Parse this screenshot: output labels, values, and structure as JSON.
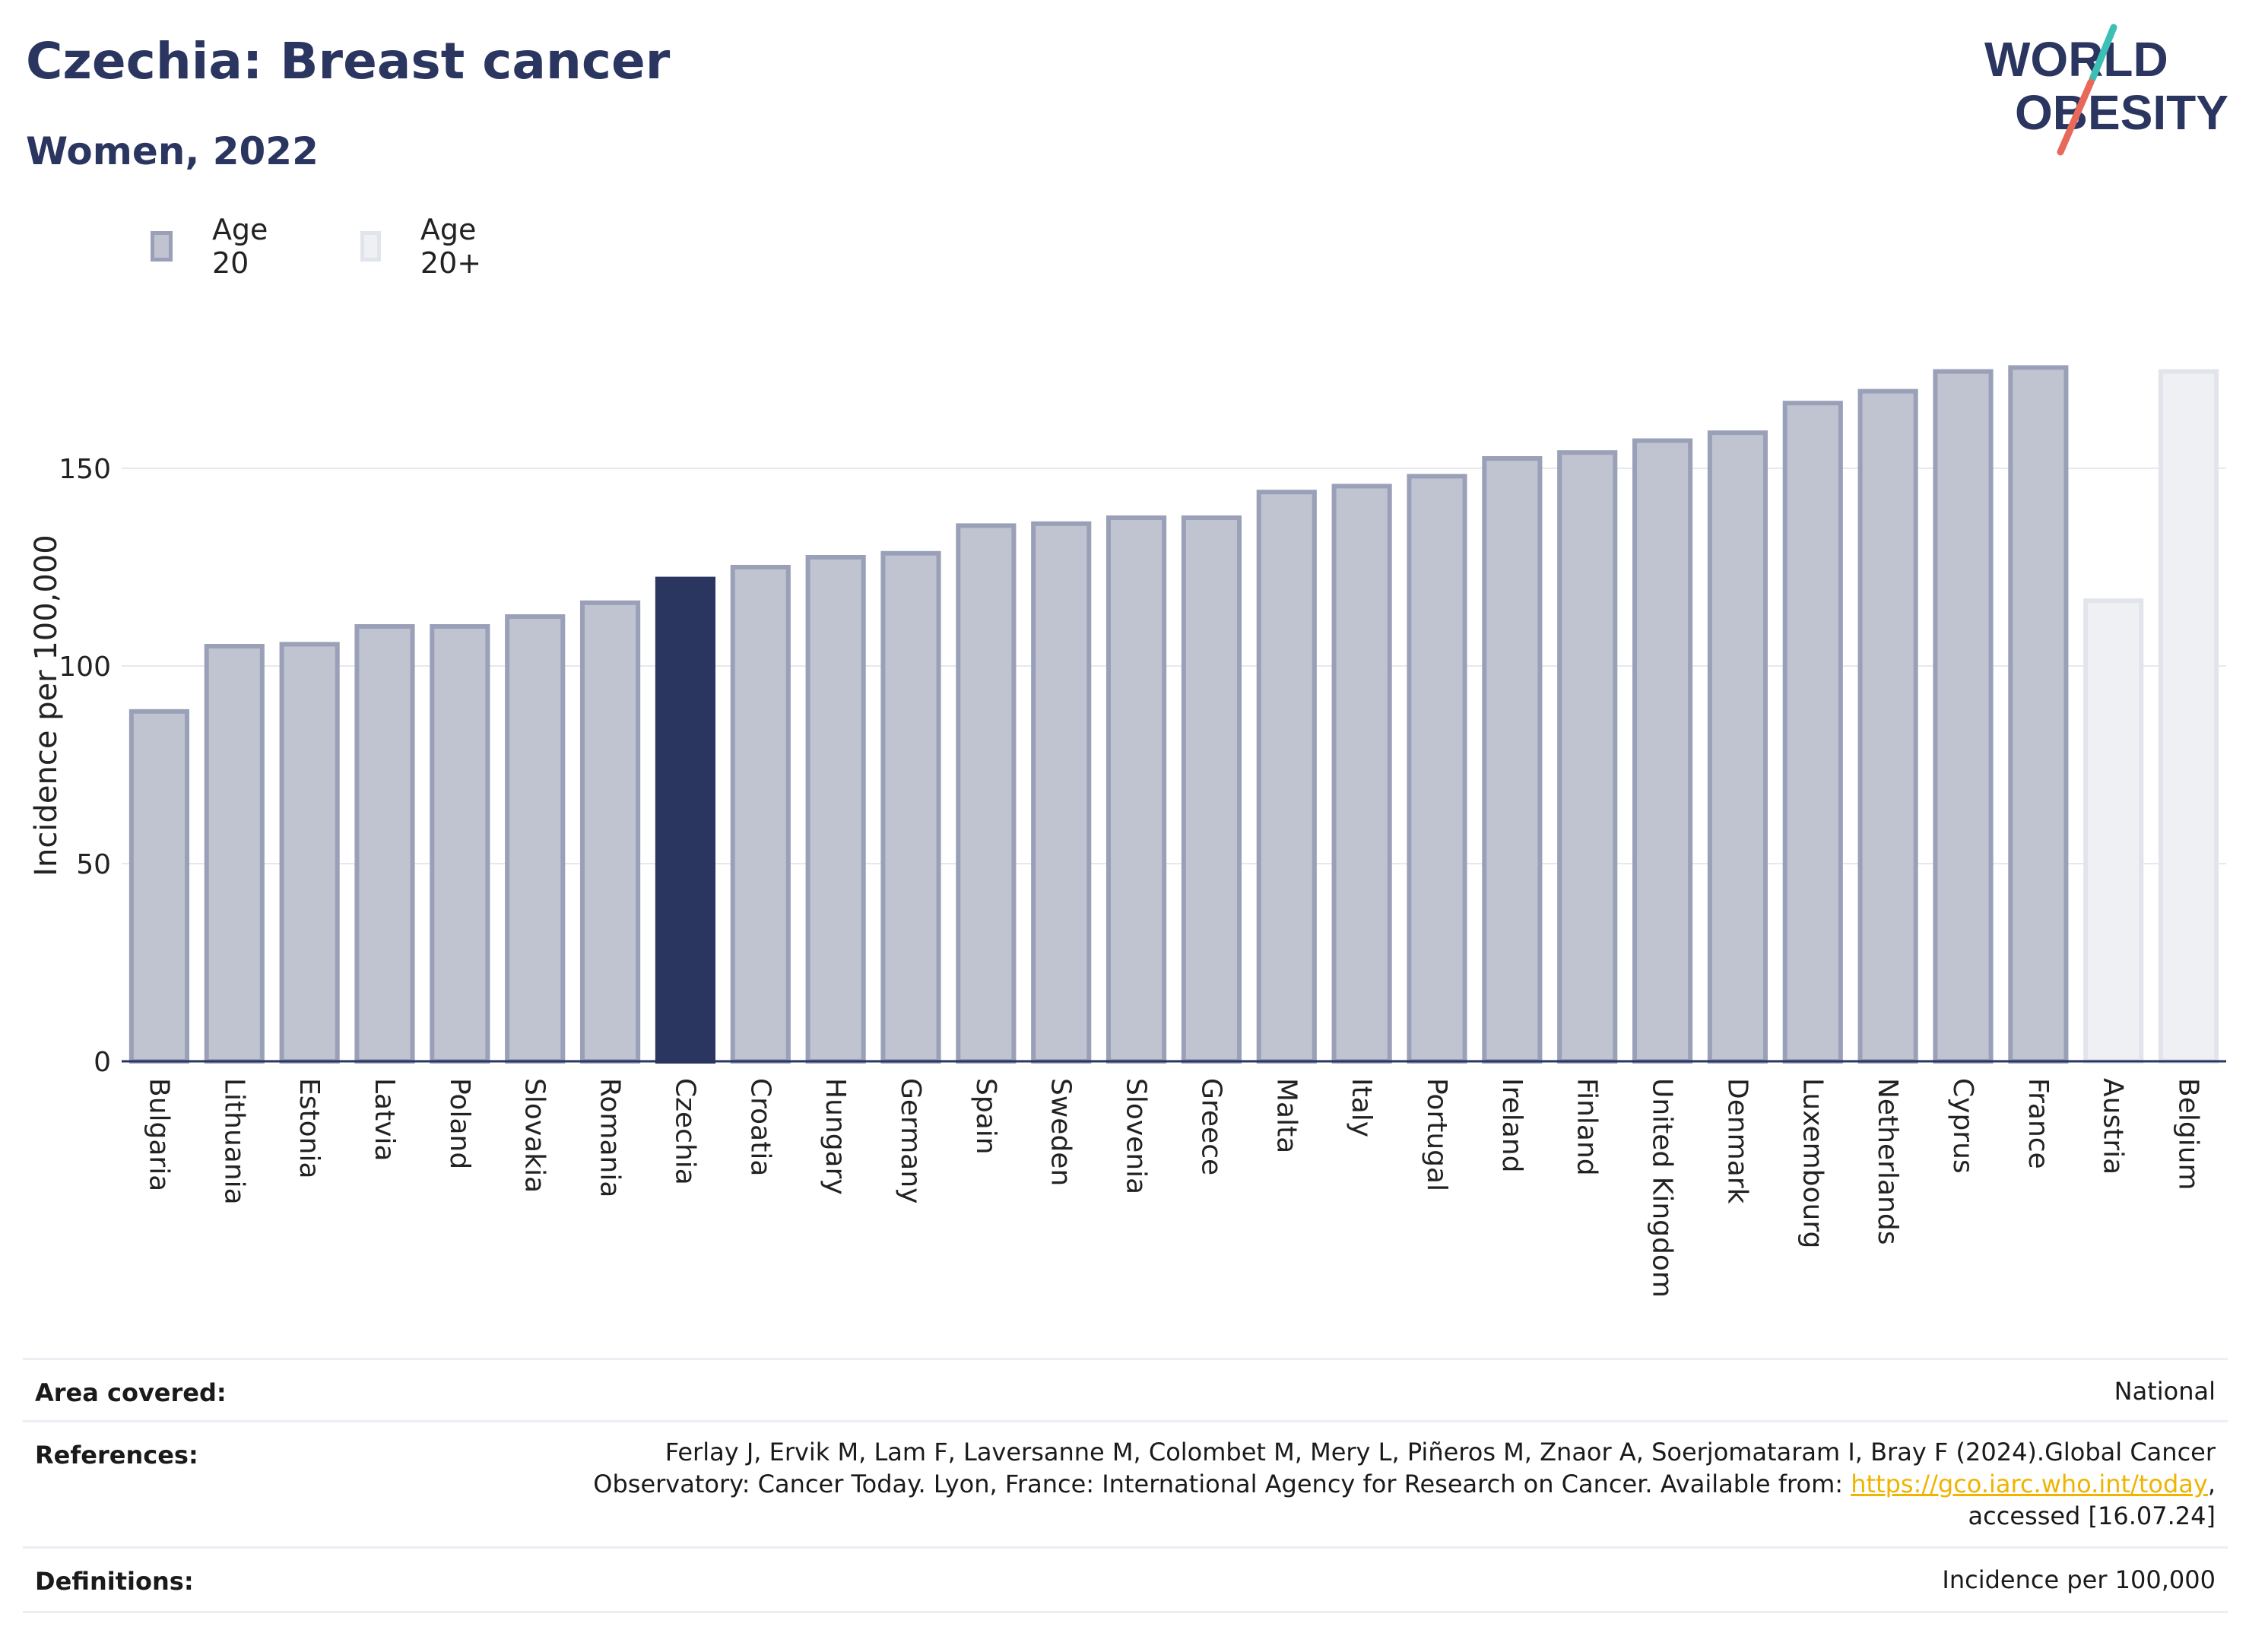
{
  "header": {
    "title": "Czechia: Breast cancer",
    "subtitle": "Women, 2022"
  },
  "logo": {
    "line1": "WORLD",
    "line2": "OBESITY",
    "slash_colors": [
      "#e8685a",
      "#3cc0b6"
    ]
  },
  "legend": [
    {
      "label": "Age 20",
      "fill": "#c0c3d0",
      "stroke": "#9aa0b8"
    },
    {
      "label": "Age 20+",
      "fill": "#eff0f4",
      "stroke": "#e2e4ec"
    }
  ],
  "chart_data": {
    "type": "bar",
    "title": "",
    "xlabel": "",
    "ylabel": "Incidence per 100,000",
    "ylim": [
      0,
      180
    ],
    "yticks": [
      0,
      50,
      100,
      150
    ],
    "grid": true,
    "legend_position": "top-left",
    "highlight": "Czechia",
    "colors": {
      "age20_fill": "#c0c3d0",
      "age20_stroke": "#9aa0b8",
      "age20plus_fill": "#eff0f4",
      "age20plus_stroke": "#e2e4ec",
      "highlight": "#2b3660"
    },
    "categories": [
      "Bulgaria",
      "Lithuania",
      "Estonia",
      "Latvia",
      "Poland",
      "Slovakia",
      "Romania",
      "Czechia",
      "Croatia",
      "Hungary",
      "Germany",
      "Spain",
      "Sweden",
      "Slovenia",
      "Greece",
      "Malta",
      "Italy",
      "Portugal",
      "Ireland",
      "Finland",
      "United Kingdom",
      "Denmark",
      "Luxembourg",
      "Netherlands",
      "Cyprus",
      "France",
      "Austria",
      "Belgium"
    ],
    "series": [
      {
        "name": "Age 20",
        "values": [
          88.5,
          105,
          105.5,
          110,
          110,
          112.5,
          116,
          122,
          125,
          127.5,
          128.5,
          135.5,
          136,
          137.5,
          137.5,
          144,
          145.5,
          148,
          152.5,
          154,
          157,
          159,
          166.5,
          169.5,
          174.5,
          175.5,
          null,
          null
        ]
      },
      {
        "name": "Age 20+",
        "values": [
          null,
          null,
          null,
          null,
          null,
          null,
          null,
          null,
          null,
          null,
          null,
          null,
          null,
          null,
          null,
          null,
          null,
          null,
          null,
          null,
          null,
          null,
          null,
          null,
          null,
          null,
          116.5,
          174.5
        ]
      }
    ]
  },
  "footer": {
    "area_label": "Area covered:",
    "area_value": "National",
    "references_label": "References:",
    "references_line1": "Ferlay J, Ervik M, Lam F, Laversanne M, Colombet M, Mery L, Piñeros M, Znaor A, Soerjomataram I, Bray F (2024).Global Cancer",
    "references_line2_pre": "Observatory: Cancer Today. Lyon, France: International Agency for Research on Cancer. Available from: ",
    "references_link": "https://gco.iarc.who.int/today",
    "references_line2_post": ",",
    "references_line3": "accessed [16.07.24]",
    "definitions_label": "Definitions:",
    "definitions_value": "Incidence per 100,000"
  }
}
